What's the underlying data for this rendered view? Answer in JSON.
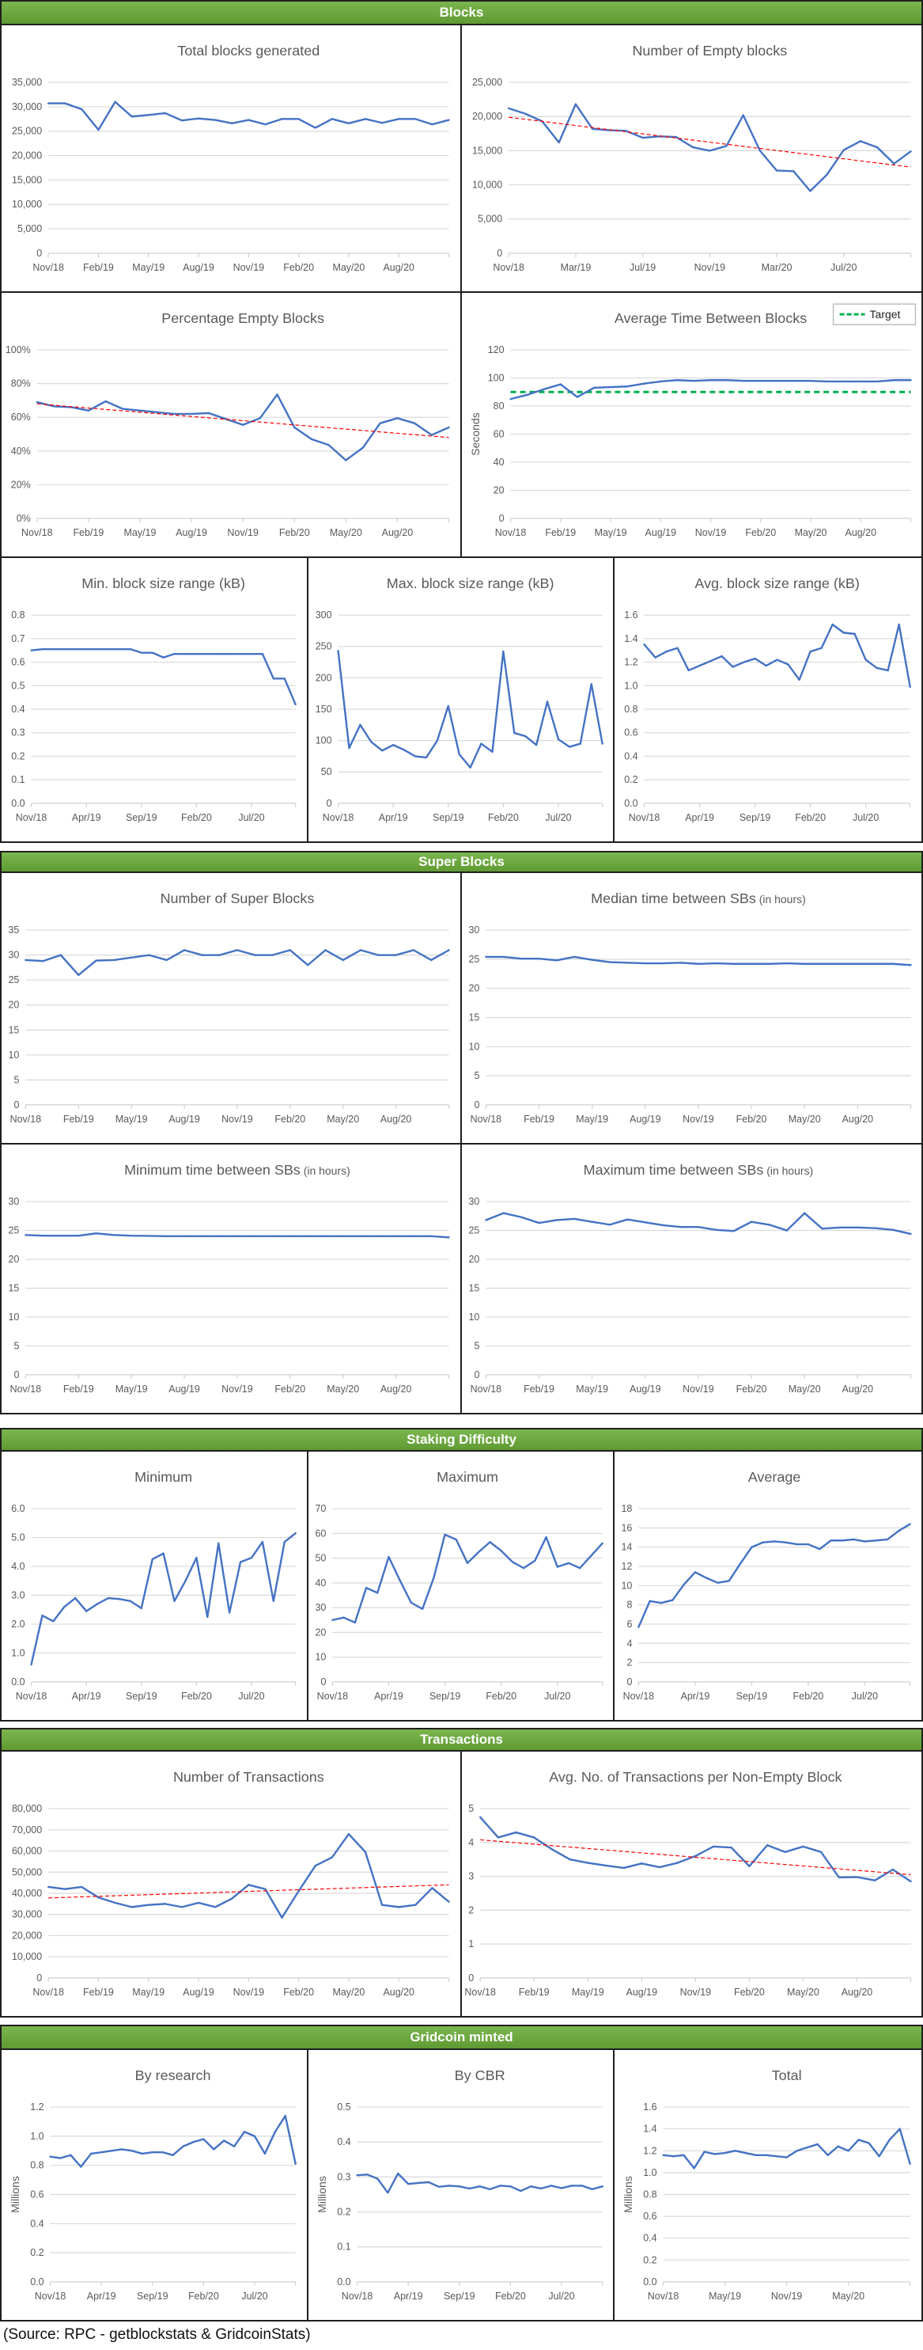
{
  "sections": [
    {
      "label": "Blocks"
    },
    {
      "label": "Super Blocks"
    },
    {
      "label": "Staking Difficulty"
    },
    {
      "label": "Transactions"
    },
    {
      "label": "Gridcoin minted"
    }
  ],
  "source_note": "(Source: RPC - getblockstats & GridcoinStats)",
  "colors": {
    "line": "#4472C4",
    "trend": "#FF0000",
    "target": "#00B050",
    "grid": "#D9D9D9",
    "header": "#70AD47"
  },
  "chart_data": [
    {
      "type": "line",
      "title": "Total blocks generated",
      "title_suffix": "",
      "ylabel": "",
      "ylim": [
        0,
        35000
      ],
      "yticks": [
        0,
        5000,
        10000,
        15000,
        20000,
        25000,
        30000,
        35000
      ],
      "ytick_format": "comma",
      "xtick_labels": [
        "Nov/18",
        "Feb/19",
        "May/19",
        "Aug/19",
        "Nov/19",
        "Feb/20",
        "May/20",
        "Aug/20"
      ],
      "xtick_every": 3,
      "values": [
        30700,
        30700,
        29500,
        25300,
        31000,
        28000,
        28300,
        28700,
        27200,
        27600,
        27300,
        26600,
        27300,
        26400,
        27500,
        27500,
        25700,
        27500,
        26600,
        27500,
        26700,
        27500,
        27500,
        26400,
        27300
      ]
    },
    {
      "type": "line",
      "title": "Number of Empty blocks",
      "title_suffix": "",
      "ylabel": "",
      "ylim": [
        0,
        25000
      ],
      "yticks": [
        0,
        5000,
        10000,
        15000,
        20000,
        25000
      ],
      "ytick_format": "comma",
      "xtick_labels": [
        "Nov/18",
        "Mar/19",
        "Jul/19",
        "Nov/19",
        "Mar/20",
        "Jul/20"
      ],
      "xtick_every": 4,
      "values": [
        21200,
        20400,
        19300,
        16200,
        21800,
        18200,
        18000,
        17900,
        16900,
        17100,
        17000,
        15500,
        15000,
        15700,
        20200,
        15000,
        12100,
        12000,
        9100,
        11500,
        15100,
        16400,
        15500,
        13100,
        14900
      ],
      "trend": [
        19900,
        12600
      ]
    },
    {
      "type": "line",
      "title": "Percentage Empty Blocks",
      "title_suffix": "",
      "ylabel": "",
      "ylim": [
        0,
        100
      ],
      "yticks": [
        0,
        20,
        40,
        60,
        80,
        100
      ],
      "ytick_format": "pct",
      "xtick_labels": [
        "Nov/18",
        "Feb/19",
        "May/19",
        "Aug/19",
        "Nov/19",
        "Feb/20",
        "May/20",
        "Aug/20"
      ],
      "xtick_every": 3,
      "values": [
        69,
        66.5,
        66,
        64,
        69.5,
        65,
        64,
        63,
        62,
        62,
        62.5,
        59,
        55.5,
        59.5,
        73.5,
        54,
        47,
        43.5,
        34.5,
        42,
        56.5,
        59.5,
        56.5,
        49.5,
        54
      ],
      "trend": [
        68,
        48
      ]
    },
    {
      "type": "line",
      "title": "Average Time Between Blocks",
      "title_suffix": "",
      "ylabel": "Seconds",
      "ylim": [
        0,
        120
      ],
      "yticks": [
        0,
        20,
        40,
        60,
        80,
        100,
        120
      ],
      "ytick_format": "int",
      "xtick_labels": [
        "Nov/18",
        "Feb/19",
        "May/19",
        "Aug/19",
        "Nov/19",
        "Feb/20",
        "May/20",
        "Aug/20"
      ],
      "xtick_every": 3,
      "values": [
        85,
        88,
        92,
        95.5,
        86.5,
        93,
        93.5,
        94,
        96,
        97.5,
        98.5,
        98,
        98.5,
        98.5,
        98,
        98,
        98,
        98,
        98,
        97.5,
        97.5,
        97.5,
        97.5,
        98.5,
        98.5
      ],
      "target": 90,
      "legend": "Target"
    },
    {
      "type": "line",
      "title": "Min. block size range (kB)",
      "title_suffix": "",
      "ylabel": "",
      "ylim": [
        0,
        0.8
      ],
      "yticks": [
        0,
        0.1,
        0.2,
        0.3,
        0.4,
        0.5,
        0.6,
        0.7,
        0.8
      ],
      "ytick_format": "1dp",
      "xtick_labels": [
        "Nov/18",
        "Apr/19",
        "Sep/19",
        "Feb/20",
        "Jul/20"
      ],
      "xtick_every": 5,
      "values": [
        0.65,
        0.655,
        0.655,
        0.655,
        0.655,
        0.655,
        0.655,
        0.655,
        0.655,
        0.655,
        0.64,
        0.64,
        0.62,
        0.635,
        0.635,
        0.635,
        0.635,
        0.635,
        0.635,
        0.635,
        0.635,
        0.635,
        0.53,
        0.53,
        0.42
      ]
    },
    {
      "type": "line",
      "title": "Max. block size range (kB)",
      "title_suffix": "",
      "ylabel": "",
      "ylim": [
        0,
        300
      ],
      "yticks": [
        0,
        50,
        100,
        150,
        200,
        250,
        300
      ],
      "ytick_format": "int",
      "xtick_labels": [
        "Nov/18",
        "Apr/19",
        "Sep/19",
        "Feb/20",
        "Jul/20"
      ],
      "xtick_every": 5,
      "values": [
        243,
        88,
        125,
        98,
        84,
        93,
        85,
        75,
        73,
        100,
        155,
        78,
        57,
        95,
        82,
        242,
        112,
        107,
        93,
        162,
        102,
        90,
        95,
        190,
        95
      ]
    },
    {
      "type": "line",
      "title": "Avg. block size range (kB)",
      "title_suffix": "",
      "ylabel": "",
      "ylim": [
        0,
        1.6
      ],
      "yticks": [
        0,
        0.2,
        0.4,
        0.6,
        0.8,
        1.0,
        1.2,
        1.4,
        1.6
      ],
      "ytick_format": "1dp",
      "xtick_labels": [
        "Nov/18",
        "Apr/19",
        "Sep/19",
        "Feb/20",
        "Jul/20"
      ],
      "xtick_every": 5,
      "values": [
        1.35,
        1.24,
        1.29,
        1.32,
        1.13,
        1.17,
        1.21,
        1.25,
        1.16,
        1.2,
        1.23,
        1.17,
        1.22,
        1.18,
        1.05,
        1.29,
        1.32,
        1.52,
        1.45,
        1.44,
        1.22,
        1.15,
        1.13,
        1.52,
        0.99
      ]
    },
    {
      "type": "line",
      "title": "Number of Super Blocks",
      "title_suffix": "",
      "ylabel": "",
      "ylim": [
        0,
        35
      ],
      "yticks": [
        0,
        5,
        10,
        15,
        20,
        25,
        30,
        35
      ],
      "ytick_format": "int",
      "xtick_labels": [
        "Nov/18",
        "Feb/19",
        "May/19",
        "Aug/19",
        "Nov/19",
        "Feb/20",
        "May/20",
        "Aug/20"
      ],
      "xtick_every": 3,
      "values": [
        29,
        28.8,
        30,
        26,
        28.9,
        29,
        29.5,
        30,
        29,
        31,
        30,
        30,
        31,
        30,
        30,
        31,
        28,
        31,
        29,
        31,
        30,
        30,
        31,
        29,
        31
      ]
    },
    {
      "type": "line",
      "title": "Median time between SBs",
      "title_suffix": "(in hours)",
      "ylabel": "",
      "ylim": [
        0,
        30
      ],
      "yticks": [
        0,
        5,
        10,
        15,
        20,
        25,
        30
      ],
      "ytick_format": "int",
      "xtick_labels": [
        "Nov/18",
        "Feb/19",
        "May/19",
        "Aug/19",
        "Nov/19",
        "Feb/20",
        "May/20",
        "Aug/20"
      ],
      "xtick_every": 3,
      "values": [
        25.4,
        25.4,
        25.1,
        25.1,
        24.8,
        25.4,
        24.9,
        24.5,
        24.4,
        24.3,
        24.3,
        24.4,
        24.2,
        24.3,
        24.2,
        24.2,
        24.2,
        24.3,
        24.2,
        24.2,
        24.2,
        24.2,
        24.2,
        24.2,
        24.0
      ]
    },
    {
      "type": "line",
      "title": "Minimum time between SBs",
      "title_suffix": "(in hours)",
      "ylabel": "",
      "ylim": [
        0,
        30
      ],
      "yticks": [
        0,
        5,
        10,
        15,
        20,
        25,
        30
      ],
      "ytick_format": "int",
      "xtick_labels": [
        "Nov/18",
        "Feb/19",
        "May/19",
        "Aug/19",
        "Nov/19",
        "Feb/20",
        "May/20",
        "Aug/20"
      ],
      "xtick_every": 3,
      "values": [
        24.2,
        24.1,
        24.1,
        24.1,
        24.5,
        24.2,
        24.1,
        24.05,
        24,
        24,
        24,
        24,
        24,
        24,
        24,
        24,
        24,
        24,
        24,
        24,
        24,
        24,
        24,
        24,
        23.8
      ]
    },
    {
      "type": "line",
      "title": "Maximum time  between SBs",
      "title_suffix": "(in hours)",
      "ylabel": "",
      "ylim": [
        0,
        30
      ],
      "yticks": [
        0,
        5,
        10,
        15,
        20,
        25,
        30
      ],
      "ytick_format": "int",
      "xtick_labels": [
        "Nov/18",
        "Feb/19",
        "May/19",
        "Aug/19",
        "Nov/19",
        "Feb/20",
        "May/20",
        "Aug/20"
      ],
      "xtick_every": 3,
      "values": [
        26.8,
        28,
        27.3,
        26.3,
        26.8,
        27,
        26.5,
        26,
        26.9,
        26.4,
        25.9,
        25.6,
        25.6,
        25.1,
        24.9,
        26.5,
        26,
        25,
        28,
        25.3,
        25.5,
        25.5,
        25.4,
        25.1,
        24.4
      ]
    },
    {
      "type": "line",
      "title": "Minimum",
      "title_suffix": "",
      "ylabel": "",
      "ylim": [
        0,
        6
      ],
      "yticks": [
        0,
        1,
        2,
        3,
        4,
        5,
        6
      ],
      "ytick_format": "1dp",
      "xtick_labels": [
        "Nov/18",
        "Apr/19",
        "Sep/19",
        "Feb/20",
        "Jul/20"
      ],
      "xtick_every": 5,
      "values": [
        0.6,
        2.3,
        2.1,
        2.6,
        2.9,
        2.45,
        2.7,
        2.9,
        2.87,
        2.8,
        2.55,
        4.25,
        4.45,
        2.8,
        3.5,
        4.3,
        2.25,
        4.8,
        2.4,
        4.15,
        4.3,
        4.85,
        2.8,
        4.85,
        5.15
      ]
    },
    {
      "type": "line",
      "title": "Maximum",
      "title_suffix": "",
      "ylabel": "",
      "ylim": [
        0,
        70
      ],
      "yticks": [
        0,
        10,
        20,
        30,
        40,
        50,
        60,
        70
      ],
      "ytick_format": "int",
      "xtick_labels": [
        "Nov/18",
        "Apr/19",
        "Sep/19",
        "Feb/20",
        "Jul/20"
      ],
      "xtick_every": 5,
      "values": [
        25,
        26,
        24,
        38,
        36,
        50.5,
        41,
        32,
        29.5,
        42,
        59.5,
        57.5,
        48,
        52.5,
        56.5,
        53,
        48.5,
        46,
        49,
        58.5,
        46.5,
        48,
        46,
        51,
        56
      ]
    },
    {
      "type": "line",
      "title": "Average",
      "title_suffix": "",
      "ylabel": "",
      "ylim": [
        0,
        18
      ],
      "yticks": [
        0,
        2,
        4,
        6,
        8,
        10,
        12,
        14,
        16,
        18
      ],
      "ytick_format": "int",
      "xtick_labels": [
        "Nov/18",
        "Apr/19",
        "Sep/19",
        "Feb/20",
        "Jul/20"
      ],
      "xtick_every": 5,
      "values": [
        5.7,
        8.4,
        8.2,
        8.5,
        10.1,
        11.4,
        10.8,
        10.3,
        10.5,
        12.3,
        14,
        14.5,
        14.6,
        14.5,
        14.3,
        14.3,
        13.8,
        14.7,
        14.7,
        14.8,
        14.6,
        14.7,
        14.8,
        15.7,
        16.4
      ]
    },
    {
      "type": "line",
      "title": "Number of Transactions",
      "title_suffix": "",
      "ylabel": "",
      "ylim": [
        0,
        80000
      ],
      "yticks": [
        0,
        10000,
        20000,
        30000,
        40000,
        50000,
        60000,
        70000,
        80000
      ],
      "ytick_format": "comma",
      "xtick_labels": [
        "Nov/18",
        "Feb/19",
        "May/19",
        "Aug/19",
        "Nov/19",
        "Feb/20",
        "May/20",
        "Aug/20"
      ],
      "xtick_every": 3,
      "values": [
        43000,
        42000,
        43000,
        38000,
        35500,
        33500,
        34500,
        35000,
        33500,
        35500,
        33500,
        37500,
        44000,
        42000,
        28500,
        41000,
        53000,
        57000,
        68000,
        59500,
        34500,
        33500,
        34500,
        42500,
        36000
      ],
      "trend": [
        37800,
        44000
      ]
    },
    {
      "type": "line",
      "title": "Avg. No. of Transactions per Non-Empty Block",
      "title_suffix": "",
      "ylabel": "",
      "ylim": [
        0,
        5
      ],
      "yticks": [
        0,
        1,
        2,
        3,
        4,
        5
      ],
      "ytick_format": "int",
      "xtick_labels": [
        "Nov/18",
        "Feb/19",
        "May/19",
        "Aug/19",
        "Nov/19",
        "Feb/20",
        "May/20",
        "Aug/20"
      ],
      "xtick_every": 3,
      "values": [
        4.75,
        4.15,
        4.3,
        4.15,
        3.8,
        3.5,
        3.4,
        3.32,
        3.25,
        3.38,
        3.27,
        3.4,
        3.6,
        3.88,
        3.85,
        3.3,
        3.92,
        3.72,
        3.88,
        3.72,
        2.97,
        2.98,
        2.88,
        3.2,
        2.85
      ],
      "trend": [
        4.08,
        3.05
      ]
    },
    {
      "type": "line",
      "title": "By research",
      "title_suffix": "",
      "ylabel": "Millions",
      "ylim": [
        0,
        1.2
      ],
      "yticks": [
        0,
        0.2,
        0.4,
        0.6,
        0.8,
        1.0,
        1.2
      ],
      "ytick_format": "1dp",
      "xtick_labels": [
        "Nov/18",
        "Apr/19",
        "Sep/19",
        "Feb/20",
        "Jul/20"
      ],
      "xtick_every": 5,
      "values": [
        0.86,
        0.85,
        0.87,
        0.79,
        0.88,
        0.89,
        0.9,
        0.91,
        0.9,
        0.88,
        0.89,
        0.89,
        0.87,
        0.93,
        0.96,
        0.98,
        0.91,
        0.97,
        0.93,
        1.03,
        1.0,
        0.88,
        1.03,
        1.14,
        0.81
      ]
    },
    {
      "type": "line",
      "title": "By CBR",
      "title_suffix": "",
      "ylabel": "Millions",
      "ylim": [
        0,
        0.5
      ],
      "yticks": [
        0,
        0.1,
        0.2,
        0.3,
        0.4,
        0.5
      ],
      "ytick_format": "1dp",
      "xtick_labels": [
        "Nov/18",
        "Apr/19",
        "Sep/19",
        "Feb/20",
        "Jul/20"
      ],
      "xtick_every": 5,
      "values": [
        0.305,
        0.307,
        0.295,
        0.255,
        0.31,
        0.28,
        0.283,
        0.285,
        0.272,
        0.275,
        0.273,
        0.267,
        0.273,
        0.265,
        0.275,
        0.273,
        0.26,
        0.273,
        0.267,
        0.275,
        0.268,
        0.275,
        0.275,
        0.265,
        0.273
      ]
    },
    {
      "type": "line",
      "title": "Total",
      "title_suffix": "",
      "ylabel": "Millions",
      "ylim": [
        0,
        1.6
      ],
      "yticks": [
        0,
        0.2,
        0.4,
        0.6,
        0.8,
        1.0,
        1.2,
        1.4,
        1.6
      ],
      "ytick_format": "1dp",
      "xtick_labels": [
        "Nov/18",
        "May/19",
        "Nov/19",
        "May/20"
      ],
      "xtick_every": 6,
      "values": [
        1.16,
        1.15,
        1.16,
        1.04,
        1.19,
        1.17,
        1.18,
        1.2,
        1.18,
        1.16,
        1.16,
        1.15,
        1.14,
        1.2,
        1.23,
        1.26,
        1.16,
        1.24,
        1.2,
        1.3,
        1.27,
        1.15,
        1.3,
        1.4,
        1.08
      ]
    }
  ]
}
